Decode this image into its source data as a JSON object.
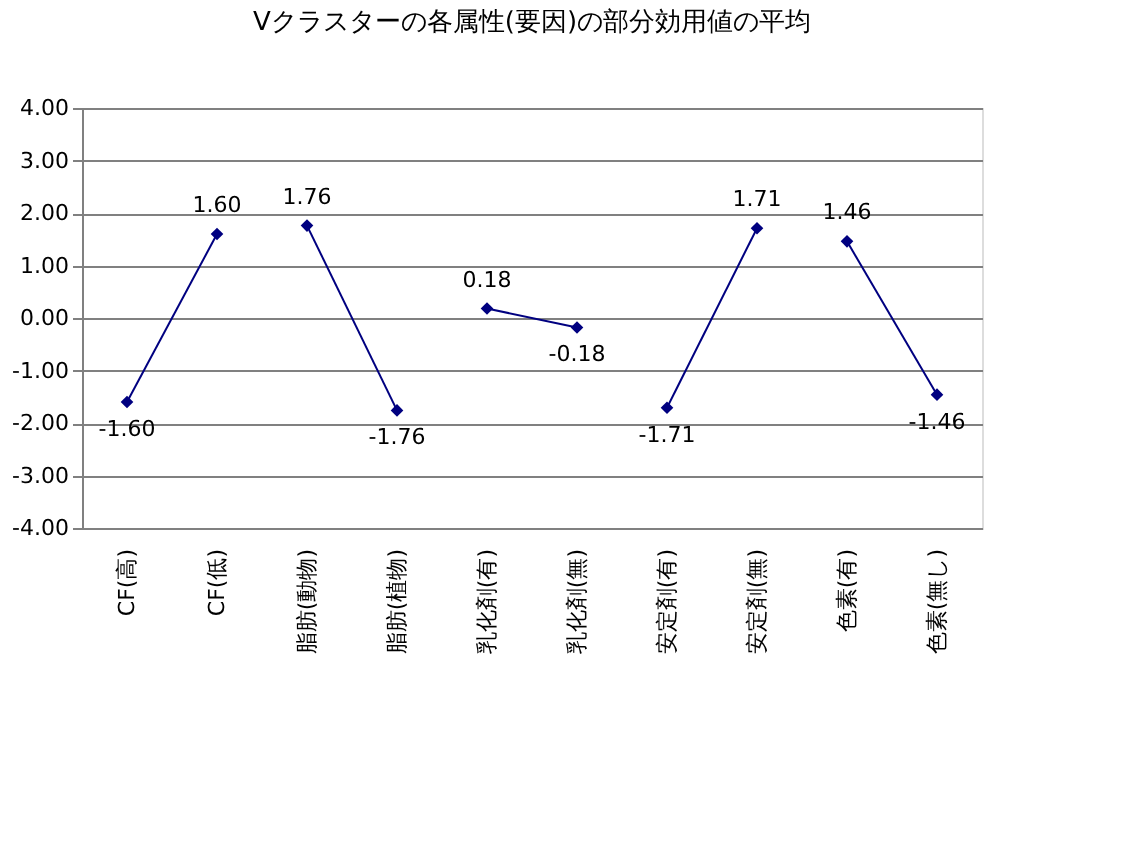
{
  "chart_data": {
    "type": "line",
    "title": "Vクラスターの各属性(要因)の部分効用値の平均",
    "categories": [
      "CF(高)",
      "CF(低)",
      "脂肪(動物)",
      "脂肪(植物)",
      "乳化剤(有)",
      "乳化剤(無)",
      "安定剤(有)",
      "安定剤(無)",
      "色素(有)",
      "色素(無し)"
    ],
    "series": [
      {
        "color": "#000080",
        "values": [
          -1.6,
          1.6,
          null,
          null,
          null,
          null,
          null,
          null,
          null,
          null
        ],
        "value_labels": [
          "-1.60",
          "1.60",
          null,
          null,
          null,
          null,
          null,
          null,
          null,
          null
        ]
      },
      {
        "color": "#000080",
        "values": [
          null,
          null,
          1.76,
          -1.76,
          null,
          null,
          null,
          null,
          null,
          null
        ],
        "value_labels": [
          null,
          null,
          "1.76",
          "-1.76",
          null,
          null,
          null,
          null,
          null,
          null
        ]
      },
      {
        "color": "#000080",
        "values": [
          null,
          null,
          null,
          null,
          0.18,
          -0.18,
          null,
          null,
          null,
          null
        ],
        "value_labels": [
          null,
          null,
          null,
          null,
          "0.18",
          "-0.18",
          null,
          null,
          null,
          null
        ]
      },
      {
        "color": "#000080",
        "values": [
          null,
          null,
          null,
          null,
          null,
          null,
          -1.71,
          1.71,
          null,
          null
        ],
        "value_labels": [
          null,
          null,
          null,
          null,
          null,
          null,
          "-1.71",
          "1.71",
          null,
          null
        ]
      },
      {
        "color": "#000080",
        "values": [
          null,
          null,
          null,
          null,
          null,
          null,
          null,
          null,
          1.46,
          -1.46
        ],
        "value_labels": [
          null,
          null,
          null,
          null,
          null,
          null,
          null,
          null,
          "1.46",
          "-1.46"
        ]
      }
    ],
    "ylim": [
      -4,
      4
    ],
    "yticks": [
      {
        "value": -4,
        "label": "-4.00"
      },
      {
        "value": -3,
        "label": "-3.00"
      },
      {
        "value": -2,
        "label": "-2.00"
      },
      {
        "value": -1,
        "label": "-1.00"
      },
      {
        "value": 0,
        "label": "0.00"
      },
      {
        "value": 1,
        "label": "1.00"
      },
      {
        "value": 2,
        "label": "2.00"
      },
      {
        "value": 3,
        "label": "3.00"
      },
      {
        "value": 4,
        "label": "4.00"
      }
    ],
    "grid": "y",
    "marker": "diamond",
    "line_style": "solid"
  }
}
